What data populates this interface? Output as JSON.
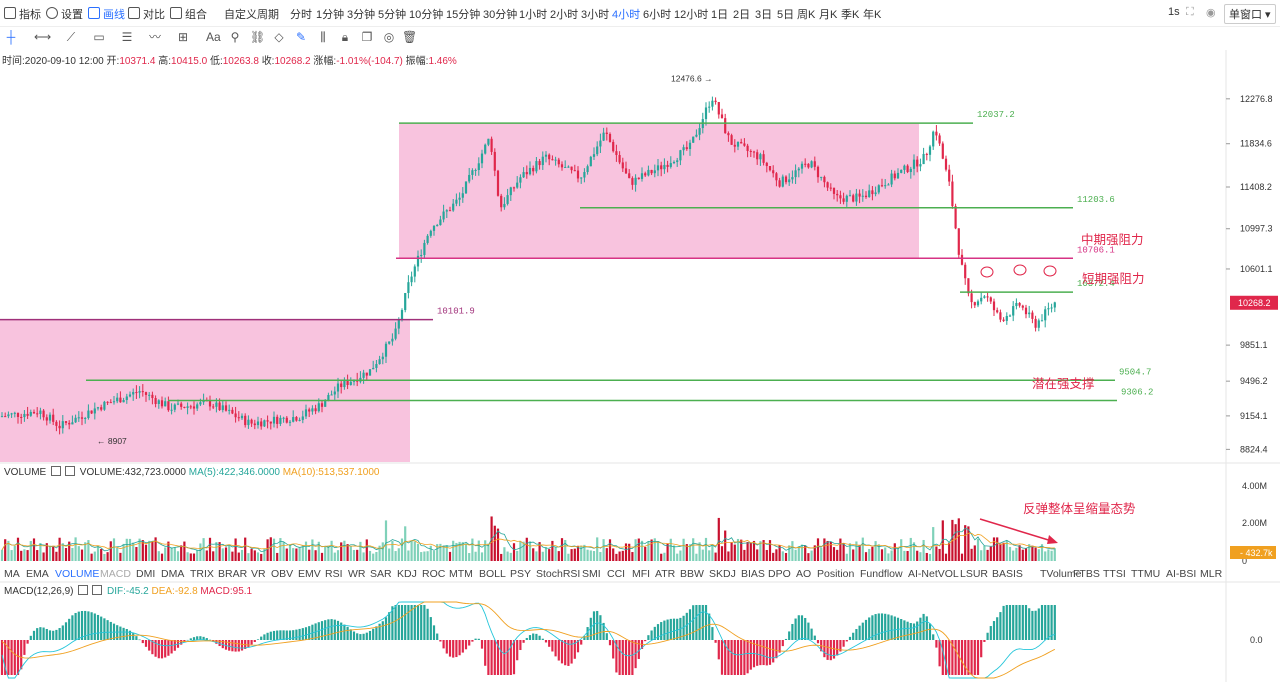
{
  "toolbar": {
    "items": [
      "指标",
      "设置",
      "画线",
      "对比",
      "组合"
    ],
    "periods": [
      "自定义周期",
      "分时",
      "1分钟",
      "3分钟",
      "5分钟",
      "10分钟",
      "15分钟",
      "30分钟",
      "1小时",
      "2小时",
      "3小时",
      "4小时",
      "6小时",
      "12小时",
      "1日",
      "2日",
      "3日",
      "5日",
      "周K",
      "月K",
      "季K",
      "年K"
    ],
    "active_period": "4小时",
    "interval": "1s",
    "window_mode": "单窗口"
  },
  "ohlc": {
    "time_label": "时间:",
    "time": "2020-09-10 12:00",
    "open_label": "开:",
    "open": "10371.4",
    "high_label": "高:",
    "high": "10415.0",
    "low_label": "低:",
    "low": "10263.8",
    "close_label": "收:",
    "close": "10268.2",
    "change_label": "涨幅:",
    "change": "-1.01%(-104.7)",
    "amp_label": "振幅:",
    "amp": "1.46%"
  },
  "volume_legend": {
    "name": "VOLUME",
    "vol": "VOLUME:432,723.0000",
    "ma5": "MA(5):422,346.0000",
    "ma10": "MA(10):513,537.1000"
  },
  "macd_legend": {
    "name": "MACD(12,26,9)",
    "dif": "DIF:-45.2",
    "dea": "DEA:-92.8",
    "macd": "MACD:95.1"
  },
  "indicators": [
    "MA",
    "EMA",
    "VOLUME",
    "MACD",
    "DMI",
    "DMA",
    "TRIX",
    "BRAR",
    "VR",
    "OBV",
    "EMV",
    "RSI",
    "WR",
    "SAR",
    "KDJ",
    "ROC",
    "MTM",
    "BOLL",
    "PSY",
    "StochRSI",
    "SMI",
    "CCI",
    "MFI",
    "ATR",
    "BBW",
    "SKDJ",
    "BIAS",
    "DPO",
    "AO",
    "Position",
    "Fundflow",
    "AI-NetVOL",
    "LSUR",
    "BASIS",
    "TVolume",
    "FTBS",
    "TTSI",
    "TTMU",
    "AI-BSI",
    "MLR"
  ],
  "active_indicator": "VOLUME",
  "chart_data": {
    "type": "candlestick",
    "price_axis_ticks": [
      "12276.8",
      "11834.6",
      "11408.2",
      "10997.3",
      "10601.1",
      "10268.2",
      "9851.1",
      "9496.2",
      "9154.1",
      "8824.4"
    ],
    "volume_axis_ticks": [
      "4.00M",
      "2.00M",
      "0"
    ],
    "volume_current": "432.7k",
    "macd_axis_ticks": [
      "0.0"
    ],
    "last_price": "10268.2",
    "high_marker": "12476.6",
    "low_marker": "8907",
    "levels": [
      {
        "value": 12037.2,
        "label": "12037.2",
        "color": "#4caf50"
      },
      {
        "value": 11203.6,
        "label": "11203.6",
        "color": "#4caf50"
      },
      {
        "value": 10706.1,
        "label": "10706.1",
        "color": "#d63384"
      },
      {
        "value": 10372.4,
        "label": "10372.4",
        "color": "#4caf50"
      },
      {
        "value": 10101.9,
        "label": "10101.9",
        "color": "#a0307a"
      },
      {
        "value": 9504.7,
        "label": "9504.7",
        "color": "#4caf50"
      },
      {
        "value": 9306.2,
        "label": "9306.2",
        "color": "#4caf50"
      }
    ],
    "annotations": [
      "中期强阻力",
      "短期强阻力",
      "潜在强支撑",
      "反弹整体呈缩量态势"
    ],
    "ylim": [
      8700,
      12600
    ]
  },
  "colors": {
    "up": "#26a69a",
    "down": "#e0274b",
    "accent": "#2b70ff",
    "zone": "#f7b9d8",
    "green_line": "#4caf50"
  }
}
